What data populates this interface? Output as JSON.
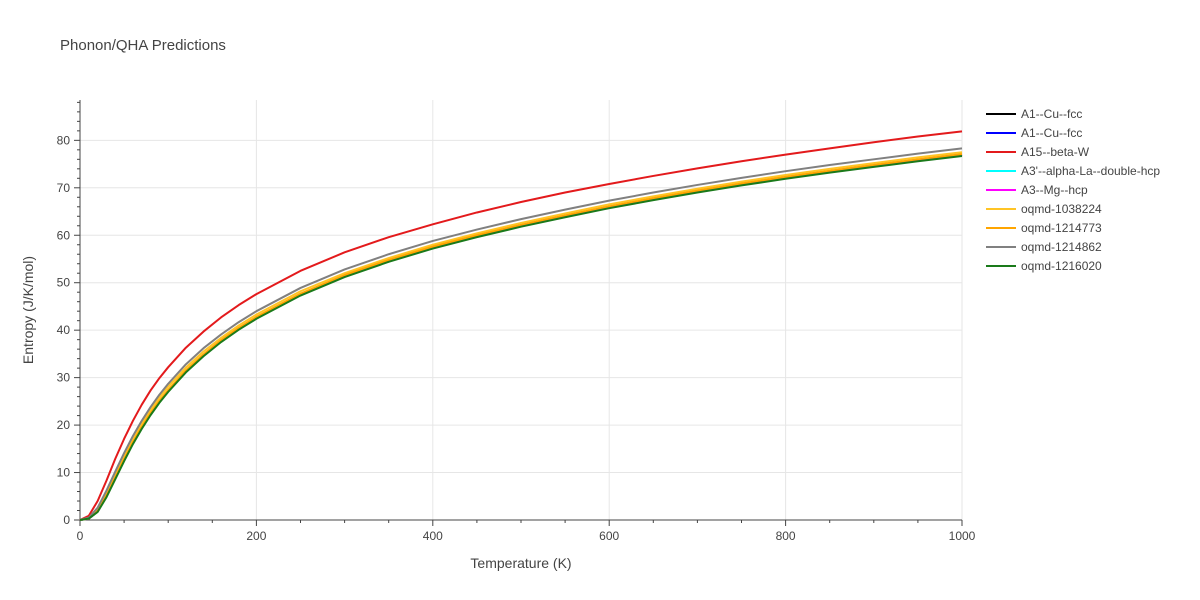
{
  "chart_data": {
    "type": "line",
    "title": "Phonon/QHA Predictions",
    "xlabel": "Temperature (K)",
    "ylabel": "Entropy (J/K/mol)",
    "xlim": [
      0,
      1000
    ],
    "ylim": [
      0,
      88.5
    ],
    "xticks": [
      0,
      200,
      400,
      600,
      800,
      1000
    ],
    "yticks": [
      0,
      10,
      20,
      30,
      40,
      50,
      60,
      70,
      80
    ],
    "grid": true,
    "legend_position": "right",
    "x": [
      0,
      10,
      20,
      30,
      40,
      50,
      60,
      70,
      80,
      90,
      100,
      120,
      140,
      160,
      180,
      200,
      250,
      300,
      350,
      400,
      450,
      500,
      550,
      600,
      650,
      700,
      750,
      800,
      850,
      900,
      950,
      1000
    ],
    "series": [
      {
        "name": "A1--Cu--fcc",
        "color": "#000000",
        "values": [
          0,
          0.3,
          1.8,
          5.0,
          8.8,
          12.6,
          16.2,
          19.4,
          22.3,
          24.9,
          27.2,
          31.3,
          34.7,
          37.7,
          40.3,
          42.6,
          47.5,
          51.4,
          54.6,
          57.4,
          59.8,
          62.0,
          64.0,
          65.9,
          67.6,
          69.2,
          70.7,
          72.1,
          73.4,
          74.6,
          75.8,
          77.0
        ]
      },
      {
        "name": "A1--Cu--fcc",
        "color": "#0000ff",
        "values": [
          0,
          0.3,
          1.8,
          5.0,
          8.8,
          12.6,
          16.2,
          19.4,
          22.3,
          24.9,
          27.2,
          31.3,
          34.7,
          37.7,
          40.3,
          42.6,
          47.5,
          51.4,
          54.6,
          57.4,
          59.8,
          62.0,
          64.0,
          65.9,
          67.6,
          69.2,
          70.7,
          72.1,
          73.4,
          74.6,
          75.8,
          77.0
        ]
      },
      {
        "name": "A15--beta-W",
        "color": "#e31a1c",
        "values": [
          0,
          0.9,
          4.0,
          8.3,
          12.9,
          17.1,
          20.9,
          24.3,
          27.3,
          29.9,
          32.2,
          36.3,
          39.7,
          42.7,
          45.3,
          47.6,
          52.5,
          56.4,
          59.6,
          62.3,
          64.8,
          67.0,
          69.0,
          70.8,
          72.5,
          74.1,
          75.6,
          77.0,
          78.3,
          79.6,
          80.8,
          81.9
        ]
      },
      {
        "name": "A3'--alpha-La--double-hcp",
        "color": "#00ffff",
        "values": [
          0,
          0.3,
          1.8,
          5.0,
          8.8,
          12.6,
          16.2,
          19.4,
          22.3,
          24.9,
          27.2,
          31.3,
          34.7,
          37.7,
          40.3,
          42.6,
          47.5,
          51.4,
          54.6,
          57.4,
          59.8,
          62.0,
          64.0,
          65.9,
          67.6,
          69.2,
          70.7,
          72.1,
          73.4,
          74.6,
          75.8,
          77.0
        ]
      },
      {
        "name": "A3--Mg--hcp",
        "color": "#ff00ff",
        "values": [
          0,
          0.3,
          1.8,
          5.0,
          8.8,
          12.6,
          16.2,
          19.4,
          22.3,
          24.9,
          27.2,
          31.3,
          34.7,
          37.7,
          40.3,
          42.6,
          47.5,
          51.4,
          54.6,
          57.4,
          59.8,
          62.0,
          64.0,
          65.9,
          67.6,
          69.2,
          70.7,
          72.1,
          73.4,
          74.6,
          75.8,
          77.0
        ]
      },
      {
        "name": "oqmd-1038224",
        "color": "#ffc425",
        "values": [
          0,
          0.4,
          2.4,
          5.8,
          9.7,
          13.6,
          17.1,
          20.3,
          23.2,
          25.8,
          28.1,
          32.1,
          35.5,
          38.4,
          41.0,
          43.3,
          48.2,
          52.0,
          55.2,
          58.0,
          60.4,
          62.6,
          64.6,
          66.5,
          68.2,
          69.8,
          71.3,
          72.7,
          74.0,
          75.2,
          76.4,
          77.5
        ]
      },
      {
        "name": "oqmd-1214773",
        "color": "#ffa500",
        "values": [
          0,
          0.3,
          2.0,
          5.2,
          9.0,
          12.8,
          16.4,
          19.6,
          22.5,
          25.1,
          27.4,
          31.5,
          34.9,
          37.9,
          40.5,
          42.8,
          47.7,
          51.6,
          54.8,
          57.6,
          60.0,
          62.2,
          64.2,
          66.1,
          67.8,
          69.4,
          70.9,
          72.3,
          73.6,
          74.8,
          76.0,
          77.1
        ]
      },
      {
        "name": "oqmd-1214862",
        "color": "#808080",
        "values": [
          0,
          0.5,
          2.6,
          6.2,
          10.2,
          14.1,
          17.7,
          20.9,
          23.8,
          26.4,
          28.7,
          32.8,
          36.2,
          39.1,
          41.7,
          44.0,
          48.9,
          52.8,
          56.0,
          58.8,
          61.2,
          63.4,
          65.4,
          67.3,
          69.0,
          70.6,
          72.1,
          73.5,
          74.8,
          76.0,
          77.2,
          78.3
        ]
      },
      {
        "name": "oqmd-1216020",
        "color": "#1a7a1a",
        "values": [
          0,
          0.3,
          1.7,
          4.8,
          8.6,
          12.4,
          16.0,
          19.2,
          22.1,
          24.7,
          27.0,
          31.1,
          34.5,
          37.5,
          40.1,
          42.4,
          47.3,
          51.2,
          54.4,
          57.2,
          59.6,
          61.8,
          63.8,
          65.7,
          67.4,
          69.0,
          70.5,
          71.9,
          73.2,
          74.4,
          75.6,
          76.7
        ]
      }
    ]
  }
}
